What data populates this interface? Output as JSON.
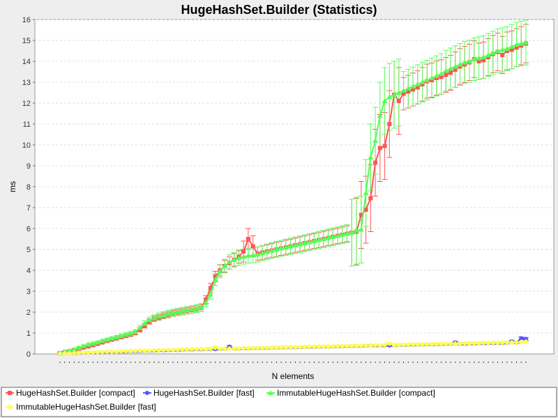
{
  "chart_data": {
    "type": "line",
    "title": "HugeHashSet.Builder (Statistics)",
    "xlabel": "N elements",
    "ylabel": "ms",
    "ylim": [
      0,
      16
    ],
    "yticks": [
      "0",
      "1",
      "2",
      "3",
      "4",
      "5",
      "6",
      "7",
      "8",
      "9",
      "10",
      "11",
      "12",
      "13",
      "14",
      "15",
      "16"
    ],
    "grid": true,
    "legend_placement": "bottom",
    "x_count": 100,
    "series": [
      {
        "name": "HugeHashSet.Builder [compact]",
        "color": "#ff5555",
        "marker": "square",
        "values": [
          0.03,
          0.08,
          0.12,
          0.18,
          0.24,
          0.3,
          0.36,
          0.42,
          0.48,
          0.55,
          0.62,
          0.68,
          0.74,
          0.8,
          0.86,
          0.92,
          1.0,
          1.15,
          1.35,
          1.55,
          1.68,
          1.75,
          1.82,
          1.88,
          1.94,
          1.98,
          2.02,
          2.06,
          2.1,
          2.14,
          2.2,
          2.6,
          3.15,
          3.7,
          4.0,
          4.2,
          4.35,
          4.5,
          4.65,
          4.9,
          5.5,
          5.15,
          4.8,
          4.85,
          4.9,
          4.95,
          5.0,
          5.05,
          5.1,
          5.15,
          5.2,
          5.25,
          5.3,
          5.35,
          5.4,
          5.45,
          5.5,
          5.55,
          5.6,
          5.65,
          5.7,
          5.75,
          5.8,
          5.85,
          6.65,
          6.9,
          7.45,
          9.15,
          9.85,
          9.95,
          11.0,
          12.4,
          12.1,
          12.45,
          12.55,
          12.65,
          12.75,
          12.9,
          13.05,
          13.1,
          13.2,
          13.25,
          13.35,
          13.45,
          13.6,
          13.75,
          13.85,
          13.95,
          14.1,
          14.0,
          14.05,
          14.2,
          14.35,
          14.45,
          14.3,
          14.5,
          14.55,
          14.65,
          14.75,
          14.85
        ]
      },
      {
        "name": "HugeHashSet.Builder [fast]",
        "color": "#5555ff",
        "marker": "circle",
        "values": [
          0.01,
          0.02,
          0.03,
          0.03,
          0.04,
          0.05,
          0.06,
          0.06,
          0.07,
          0.08,
          0.08,
          0.09,
          0.1,
          0.1,
          0.11,
          0.12,
          0.12,
          0.13,
          0.14,
          0.14,
          0.15,
          0.16,
          0.16,
          0.17,
          0.18,
          0.18,
          0.19,
          0.2,
          0.2,
          0.21,
          0.21,
          0.22,
          0.22,
          0.23,
          0.23,
          0.24,
          0.35,
          0.25,
          0.25,
          0.26,
          0.26,
          0.27,
          0.27,
          0.28,
          0.28,
          0.29,
          0.29,
          0.3,
          0.3,
          0.31,
          0.31,
          0.32,
          0.32,
          0.33,
          0.33,
          0.34,
          0.34,
          0.35,
          0.35,
          0.36,
          0.36,
          0.37,
          0.37,
          0.38,
          0.38,
          0.39,
          0.4,
          0.39,
          0.4,
          0.4,
          0.41,
          0.41,
          0.42,
          0.42,
          0.43,
          0.43,
          0.44,
          0.44,
          0.45,
          0.45,
          0.46,
          0.46,
          0.47,
          0.47,
          0.55,
          0.48,
          0.48,
          0.49,
          0.49,
          0.5,
          0.5,
          0.51,
          0.51,
          0.52,
          0.52,
          0.53,
          0.6,
          0.54,
          0.75,
          0.72
        ]
      },
      {
        "name": "ImmutableHugeHashSet.Builder [compact]",
        "color": "#55ff55",
        "marker": "triangle",
        "values": [
          0.05,
          0.1,
          0.15,
          0.22,
          0.3,
          0.38,
          0.45,
          0.5,
          0.55,
          0.62,
          0.68,
          0.74,
          0.8,
          0.86,
          0.92,
          0.98,
          1.05,
          1.25,
          1.45,
          1.62,
          1.72,
          1.8,
          1.86,
          1.92,
          1.97,
          2.01,
          2.05,
          2.09,
          2.13,
          2.17,
          2.22,
          2.45,
          2.85,
          3.55,
          3.95,
          4.2,
          4.4,
          4.5,
          4.58,
          4.65,
          4.7,
          4.72,
          4.75,
          4.82,
          4.88,
          4.94,
          5.0,
          5.05,
          5.1,
          5.15,
          5.2,
          5.25,
          5.3,
          5.35,
          5.4,
          5.45,
          5.5,
          5.55,
          5.6,
          5.65,
          5.7,
          5.75,
          5.8,
          5.9,
          5.95,
          7.7,
          9.4,
          10.2,
          11.4,
          12.1,
          12.3,
          12.4,
          12.5,
          12.6,
          12.7,
          12.8,
          12.9,
          13.0,
          13.1,
          13.2,
          13.3,
          13.4,
          13.55,
          13.65,
          13.75,
          13.85,
          13.95,
          14.0,
          14.1,
          14.15,
          14.2,
          14.3,
          14.4,
          14.5,
          14.55,
          14.6,
          14.7,
          14.8,
          14.85,
          14.9
        ]
      },
      {
        "name": "ImmutableHugeHashSet.Builder [fast]",
        "color": "#ffff55",
        "marker": "diamond",
        "values": [
          0.01,
          0.02,
          0.03,
          0.04,
          0.05,
          0.06,
          0.06,
          0.07,
          0.08,
          0.09,
          0.1,
          0.1,
          0.11,
          0.12,
          0.13,
          0.13,
          0.14,
          0.15,
          0.15,
          0.16,
          0.17,
          0.17,
          0.18,
          0.19,
          0.19,
          0.2,
          0.21,
          0.21,
          0.22,
          0.22,
          0.23,
          0.23,
          0.24,
          0.3,
          0.24,
          0.25,
          0.25,
          0.26,
          0.26,
          0.27,
          0.27,
          0.28,
          0.28,
          0.29,
          0.29,
          0.3,
          0.3,
          0.31,
          0.31,
          0.32,
          0.32,
          0.33,
          0.33,
          0.34,
          0.34,
          0.35,
          0.35,
          0.36,
          0.36,
          0.37,
          0.37,
          0.38,
          0.38,
          0.39,
          0.39,
          0.4,
          0.4,
          0.41,
          0.41,
          0.42,
          0.5,
          0.42,
          0.43,
          0.43,
          0.44,
          0.44,
          0.45,
          0.45,
          0.46,
          0.46,
          0.47,
          0.47,
          0.48,
          0.48,
          0.49,
          0.49,
          0.5,
          0.5,
          0.51,
          0.51,
          0.52,
          0.52,
          0.53,
          0.53,
          0.54,
          0.54,
          0.55,
          0.55,
          0.56,
          0.58
        ]
      }
    ]
  }
}
